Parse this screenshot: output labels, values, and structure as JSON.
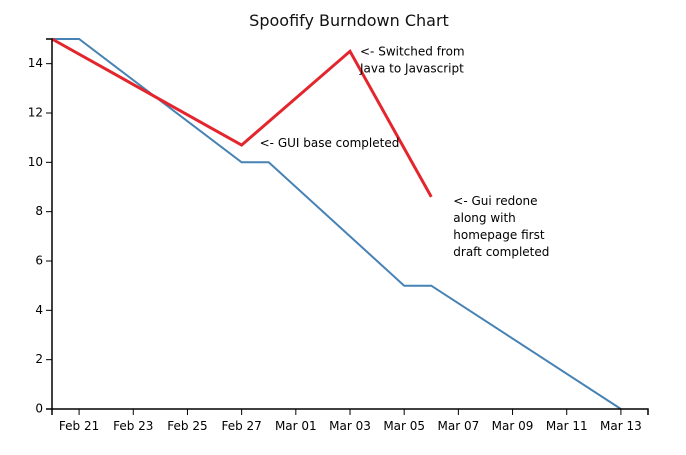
{
  "chart_data": {
    "type": "line",
    "title": "Spoofify Burndown Chart",
    "xlabel": "",
    "ylabel": "",
    "x_ticks": [
      "Feb 21",
      "Feb 23",
      "Feb 25",
      "Feb 27",
      "Mar 01",
      "Mar 03",
      "Mar 05",
      "Mar 07",
      "Mar 09",
      "Mar 11",
      "Mar 13"
    ],
    "y_ticks": [
      0,
      2,
      4,
      6,
      8,
      10,
      12,
      14
    ],
    "xlim": [
      "2017-02-20",
      "2017-03-14"
    ],
    "ylim": [
      0,
      15
    ],
    "grid": false,
    "series": [
      {
        "color": "#4682b4",
        "points": [
          {
            "x": "2017-02-20",
            "y": 15
          },
          {
            "x": "2017-02-21",
            "y": 15
          },
          {
            "x": "2017-02-27",
            "y": 10
          },
          {
            "x": "2017-02-28",
            "y": 10
          },
          {
            "x": "2017-03-05",
            "y": 5
          },
          {
            "x": "2017-03-06",
            "y": 5
          },
          {
            "x": "2017-03-13",
            "y": 0
          }
        ]
      },
      {
        "color": "#e3262d",
        "points": [
          {
            "x": "2017-02-20",
            "y": 15
          },
          {
            "x": "2017-02-27",
            "y": 10.7
          },
          {
            "x": "2017-03-03",
            "y": 14.5
          },
          {
            "x": "2017-03-06",
            "y": 8.6
          }
        ]
      }
    ],
    "annotations": [
      {
        "lines": [
          "<- Switched from",
          "Java to Javascript"
        ]
      },
      {
        "lines": [
          "<- GUI base completed"
        ]
      },
      {
        "lines": [
          "<- Gui redone",
          "along with",
          "homepage first",
          "draft completed"
        ]
      }
    ]
  }
}
